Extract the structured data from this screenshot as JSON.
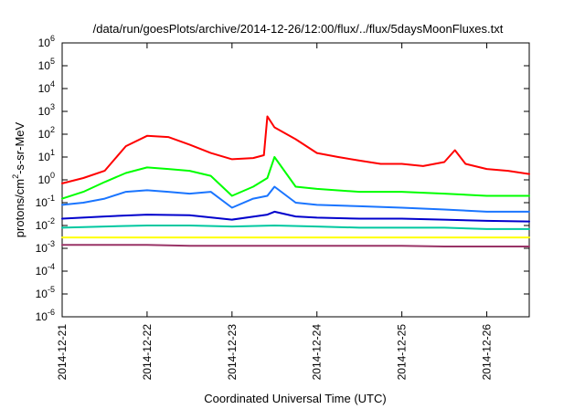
{
  "chart_data": {
    "type": "line",
    "title": "/data/run/goesPlots/archive/2014-12-26/12:00/flux/../flux/5daysMoonFluxes.txt",
    "xlabel": "Coordinated Universal Time (UTC)",
    "ylabel": {
      "prefix": "protons/cm",
      "sup": "2",
      "suffix": "-s-sr-MeV"
    },
    "y_scale": "log",
    "ylim": [
      1e-06,
      1000000.0
    ],
    "xlim": [
      "2014-12-21T00:00",
      "2014-12-26T12:00"
    ],
    "x_ticks": [
      "2014-12-21",
      "2014-12-22",
      "2014-12-23",
      "2014-12-24",
      "2014-12-25",
      "2014-12-26"
    ],
    "y_ticks": [
      {
        "value": 1e-06,
        "base": "10",
        "exp": "-6"
      },
      {
        "value": 1e-05,
        "base": "10",
        "exp": "-5"
      },
      {
        "value": 0.0001,
        "base": "10",
        "exp": "-4"
      },
      {
        "value": 0.001,
        "base": "10",
        "exp": "-3"
      },
      {
        "value": 0.01,
        "base": "10",
        "exp": "-2"
      },
      {
        "value": 0.1,
        "base": "10",
        "exp": "-1"
      },
      {
        "value": 1,
        "base": "10",
        "exp": "0"
      },
      {
        "value": 10,
        "base": "10",
        "exp": "1"
      },
      {
        "value": 100,
        "base": "10",
        "exp": "2"
      },
      {
        "value": 1000,
        "base": "10",
        "exp": "3"
      },
      {
        "value": 10000,
        "base": "10",
        "exp": "4"
      },
      {
        "value": 100000,
        "base": "10",
        "exp": "5"
      },
      {
        "value": 1000000,
        "base": "10",
        "exp": "6"
      }
    ],
    "grid": false,
    "legend": "none",
    "series": [
      {
        "color": "#ff0000",
        "x": [
          "2014-12-21T00:00",
          "2014-12-21T06:00",
          "2014-12-21T12:00",
          "2014-12-21T18:00",
          "2014-12-22T00:00",
          "2014-12-22T06:00",
          "2014-12-22T12:00",
          "2014-12-22T18:00",
          "2014-12-23T00:00",
          "2014-12-23T06:00",
          "2014-12-23T09:00",
          "2014-12-23T10:00",
          "2014-12-23T12:00",
          "2014-12-23T18:00",
          "2014-12-24T00:00",
          "2014-12-24T06:00",
          "2014-12-24T12:00",
          "2014-12-24T18:00",
          "2014-12-25T00:00",
          "2014-12-25T06:00",
          "2014-12-25T12:00",
          "2014-12-25T15:00",
          "2014-12-25T18:00",
          "2014-12-26T00:00",
          "2014-12-26T06:00",
          "2014-12-26T12:00"
        ],
        "y": [
          0.7,
          1.2,
          2.5,
          30,
          85,
          75,
          35,
          15,
          8,
          9,
          12,
          600,
          200,
          60,
          15,
          10,
          7,
          5,
          5,
          4,
          6,
          20,
          5,
          3,
          2.5,
          1.8
        ]
      },
      {
        "color": "#00ff00",
        "x": [
          "2014-12-21T00:00",
          "2014-12-21T06:00",
          "2014-12-21T12:00",
          "2014-12-21T18:00",
          "2014-12-22T00:00",
          "2014-12-22T06:00",
          "2014-12-22T12:00",
          "2014-12-22T18:00",
          "2014-12-23T00:00",
          "2014-12-23T06:00",
          "2014-12-23T10:00",
          "2014-12-23T12:00",
          "2014-12-23T18:00",
          "2014-12-24T00:00",
          "2014-12-24T12:00",
          "2014-12-25T00:00",
          "2014-12-25T12:00",
          "2014-12-26T00:00",
          "2014-12-26T12:00"
        ],
        "y": [
          0.15,
          0.3,
          0.8,
          2.0,
          3.5,
          3.0,
          2.5,
          1.5,
          0.2,
          0.5,
          1.2,
          10,
          0.5,
          0.4,
          0.3,
          0.3,
          0.25,
          0.2,
          0.2
        ]
      },
      {
        "color": "#1a75ff",
        "x": [
          "2014-12-21T00:00",
          "2014-12-21T06:00",
          "2014-12-21T12:00",
          "2014-12-21T18:00",
          "2014-12-22T00:00",
          "2014-12-22T06:00",
          "2014-12-22T12:00",
          "2014-12-22T18:00",
          "2014-12-23T00:00",
          "2014-12-23T06:00",
          "2014-12-23T10:00",
          "2014-12-23T12:00",
          "2014-12-23T18:00",
          "2014-12-24T00:00",
          "2014-12-24T12:00",
          "2014-12-25T00:00",
          "2014-12-25T12:00",
          "2014-12-26T00:00",
          "2014-12-26T12:00"
        ],
        "y": [
          0.08,
          0.1,
          0.15,
          0.3,
          0.35,
          0.3,
          0.25,
          0.3,
          0.06,
          0.15,
          0.2,
          0.5,
          0.1,
          0.08,
          0.07,
          0.06,
          0.05,
          0.04,
          0.04
        ]
      },
      {
        "color": "#0000cc",
        "x": [
          "2014-12-21T00:00",
          "2014-12-21T12:00",
          "2014-12-22T00:00",
          "2014-12-22T12:00",
          "2014-12-23T00:00",
          "2014-12-23T10:00",
          "2014-12-23T12:00",
          "2014-12-23T18:00",
          "2014-12-24T00:00",
          "2014-12-24T12:00",
          "2014-12-25T00:00",
          "2014-12-25T12:00",
          "2014-12-26T00:00",
          "2014-12-26T12:00"
        ],
        "y": [
          0.02,
          0.025,
          0.03,
          0.028,
          0.018,
          0.03,
          0.04,
          0.025,
          0.022,
          0.02,
          0.02,
          0.018,
          0.016,
          0.015
        ]
      },
      {
        "color": "#00c8a0",
        "x": [
          "2014-12-21T00:00",
          "2014-12-21T12:00",
          "2014-12-22T00:00",
          "2014-12-22T12:00",
          "2014-12-23T00:00",
          "2014-12-23T12:00",
          "2014-12-24T00:00",
          "2014-12-24T12:00",
          "2014-12-25T00:00",
          "2014-12-25T12:00",
          "2014-12-26T00:00",
          "2014-12-26T12:00"
        ],
        "y": [
          0.008,
          0.009,
          0.01,
          0.01,
          0.009,
          0.01,
          0.009,
          0.008,
          0.008,
          0.008,
          0.007,
          0.007
        ]
      },
      {
        "color": "#ffff00",
        "x": [
          "2014-12-21T00:00",
          "2014-12-21T12:00",
          "2014-12-22T00:00",
          "2014-12-22T12:00",
          "2014-12-23T00:00",
          "2014-12-23T12:00",
          "2014-12-24T00:00",
          "2014-12-24T12:00",
          "2014-12-25T00:00",
          "2014-12-25T12:00",
          "2014-12-26T00:00",
          "2014-12-26T12:00"
        ],
        "y": [
          0.003,
          0.003,
          0.003,
          0.003,
          0.003,
          0.003,
          0.003,
          0.003,
          0.003,
          0.003,
          0.003,
          0.003
        ]
      },
      {
        "color": "#993366",
        "x": [
          "2014-12-21T00:00",
          "2014-12-21T12:00",
          "2014-12-22T00:00",
          "2014-12-22T12:00",
          "2014-12-23T00:00",
          "2014-12-23T12:00",
          "2014-12-24T00:00",
          "2014-12-24T12:00",
          "2014-12-25T00:00",
          "2014-12-25T12:00",
          "2014-12-26T00:00",
          "2014-12-26T12:00"
        ],
        "y": [
          0.0014,
          0.0014,
          0.0014,
          0.0013,
          0.0013,
          0.0013,
          0.0013,
          0.0013,
          0.0013,
          0.0012,
          0.0012,
          0.0012
        ]
      }
    ]
  }
}
